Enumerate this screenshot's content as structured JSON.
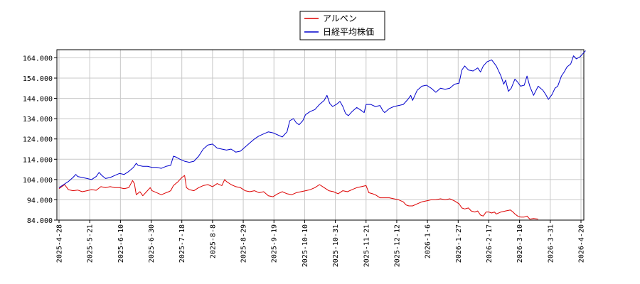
{
  "chart_data": {
    "type": "line",
    "title": "",
    "xlabel": "",
    "ylabel": "",
    "ylim": [
      84,
      168
    ],
    "y_ticks": [
      "84.000",
      "94.000",
      "104.000",
      "114.000",
      "124.000",
      "134.000",
      "144.000",
      "154.000",
      "164.000"
    ],
    "y_tick_values": [
      84,
      94,
      104,
      114,
      124,
      134,
      144,
      154,
      164
    ],
    "x_ticks": [
      "2025-4-28",
      "2025-5-21",
      "2025-6-10",
      "2025-6-30",
      "2025-7-18",
      "2025-8-8",
      "2025-8-29",
      "2025-9-19",
      "2025-10-10",
      "2025-10-31",
      "2025-11-21",
      "2025-12-12",
      "2026-1-6",
      "2026-1-27",
      "2026-2-17",
      "2026-3-10",
      "2026-3-31",
      "2026-4-20"
    ],
    "grid": true,
    "legend_position": "top-center",
    "series": [
      {
        "name": "アルペン",
        "color": "#dd0000",
        "points": [
          [
            0,
            99.5
          ],
          [
            0.6,
            101.5
          ],
          [
            1,
            99
          ],
          [
            1.5,
            98.5
          ],
          [
            2,
            98.8
          ],
          [
            2.5,
            98
          ],
          [
            3,
            98.5
          ],
          [
            3.5,
            99
          ],
          [
            4,
            98.7
          ],
          [
            4.5,
            100.5
          ],
          [
            5,
            100
          ],
          [
            5.5,
            100.5
          ],
          [
            6,
            100
          ],
          [
            6.5,
            100
          ],
          [
            7,
            99.5
          ],
          [
            7.5,
            100
          ],
          [
            7.9,
            103.5
          ],
          [
            8.1,
            102
          ],
          [
            8.3,
            96.5
          ],
          [
            8.7,
            98
          ],
          [
            9,
            96
          ],
          [
            9.5,
            98.5
          ],
          [
            9.8,
            100
          ],
          [
            10,
            98.5
          ],
          [
            10.5,
            97.5
          ],
          [
            11,
            96.5
          ],
          [
            11.5,
            97.5
          ],
          [
            11.8,
            98
          ],
          [
            12,
            98.5
          ],
          [
            12.3,
            101
          ],
          [
            12.8,
            103
          ],
          [
            13.2,
            105
          ],
          [
            13.5,
            106
          ],
          [
            13.7,
            100
          ],
          [
            14,
            99
          ],
          [
            14.5,
            98.5
          ],
          [
            15,
            100
          ],
          [
            15.5,
            101
          ],
          [
            16,
            101.5
          ],
          [
            16.5,
            100.5
          ],
          [
            17,
            102
          ],
          [
            17.5,
            101
          ],
          [
            17.8,
            104
          ],
          [
            18,
            103
          ],
          [
            18.5,
            101.5
          ],
          [
            19,
            100.5
          ],
          [
            19.5,
            100
          ],
          [
            20,
            98.5
          ],
          [
            20.5,
            98
          ],
          [
            21,
            98.5
          ],
          [
            21.5,
            97.5
          ],
          [
            22,
            98
          ],
          [
            22.5,
            96
          ],
          [
            23,
            95.5
          ],
          [
            23.5,
            97
          ],
          [
            24,
            98
          ],
          [
            24.5,
            97
          ],
          [
            25,
            96.5
          ],
          [
            25.5,
            97.5
          ],
          [
            26,
            98
          ],
          [
            26.5,
            98.5
          ],
          [
            27,
            99
          ],
          [
            27.5,
            100
          ],
          [
            28,
            101.5
          ],
          [
            28.5,
            100
          ],
          [
            29,
            98.5
          ],
          [
            29.5,
            98
          ],
          [
            30,
            97
          ],
          [
            30.5,
            98.5
          ],
          [
            31,
            98
          ],
          [
            31.5,
            99
          ],
          [
            32,
            100
          ],
          [
            32.5,
            100.5
          ],
          [
            33,
            101
          ],
          [
            33.3,
            97.5
          ],
          [
            33.7,
            97
          ],
          [
            34,
            96.5
          ],
          [
            34.5,
            95
          ],
          [
            35,
            95
          ],
          [
            35.5,
            95
          ],
          [
            36,
            94.5
          ],
          [
            36.5,
            94
          ],
          [
            37,
            93
          ],
          [
            37.3,
            91.5
          ],
          [
            37.6,
            91
          ],
          [
            38,
            91
          ],
          [
            38.5,
            92
          ],
          [
            39,
            93
          ],
          [
            39.5,
            93.5
          ],
          [
            40,
            94
          ],
          [
            40.5,
            94
          ],
          [
            41,
            94.5
          ],
          [
            41.5,
            94
          ],
          [
            42,
            94.5
          ],
          [
            42.5,
            93.5
          ],
          [
            43,
            92
          ],
          [
            43.3,
            90
          ],
          [
            43.6,
            89.5
          ],
          [
            44,
            90
          ],
          [
            44.3,
            88.5
          ],
          [
            44.7,
            88
          ],
          [
            45,
            88.5
          ],
          [
            45.3,
            86.5
          ],
          [
            45.6,
            86
          ],
          [
            45.9,
            88
          ],
          [
            46.2,
            88
          ],
          [
            46.5,
            87.5
          ],
          [
            46.8,
            88
          ],
          [
            47,
            87
          ],
          [
            47.5,
            88
          ],
          [
            48,
            88.5
          ],
          [
            48.5,
            89
          ],
          [
            48.8,
            88
          ],
          [
            49,
            87
          ],
          [
            49.3,
            86
          ],
          [
            49.6,
            85.5
          ],
          [
            50,
            85.5
          ],
          [
            50.3,
            86
          ],
          [
            50.6,
            84.5
          ],
          [
            51,
            84.8
          ],
          [
            51.5,
            84.5
          ]
        ]
      },
      {
        "name": "日経平均株価",
        "color": "#0000cc",
        "points": [
          [
            0,
            100
          ],
          [
            0.5,
            101.5
          ],
          [
            1,
            103
          ],
          [
            1.5,
            105
          ],
          [
            1.8,
            106.5
          ],
          [
            2,
            105.5
          ],
          [
            2.5,
            105
          ],
          [
            3,
            104.5
          ],
          [
            3.5,
            104
          ],
          [
            4,
            105.5
          ],
          [
            4.3,
            107.5
          ],
          [
            4.6,
            106
          ],
          [
            5,
            104.5
          ],
          [
            5.5,
            105
          ],
          [
            6,
            106
          ],
          [
            6.5,
            107
          ],
          [
            7,
            106.5
          ],
          [
            7.5,
            108
          ],
          [
            8,
            110
          ],
          [
            8.3,
            112
          ],
          [
            8.5,
            111
          ],
          [
            9,
            110.5
          ],
          [
            9.5,
            110.5
          ],
          [
            10,
            110
          ],
          [
            10.5,
            110
          ],
          [
            11,
            109.5
          ],
          [
            11.5,
            110.5
          ],
          [
            12,
            111
          ],
          [
            12.3,
            115.5
          ],
          [
            12.6,
            115
          ],
          [
            13,
            114
          ],
          [
            13.5,
            113
          ],
          [
            14,
            112.5
          ],
          [
            14.5,
            113
          ],
          [
            15,
            115.5
          ],
          [
            15.5,
            119
          ],
          [
            16,
            121
          ],
          [
            16.5,
            121.5
          ],
          [
            17,
            119.5
          ],
          [
            17.5,
            119
          ],
          [
            18,
            118.5
          ],
          [
            18.5,
            119
          ],
          [
            19,
            117.5
          ],
          [
            19.5,
            118
          ],
          [
            20,
            120
          ],
          [
            20.5,
            122
          ],
          [
            21,
            124
          ],
          [
            21.5,
            125.5
          ],
          [
            22,
            126.5
          ],
          [
            22.5,
            127.5
          ],
          [
            23,
            127
          ],
          [
            23.5,
            126
          ],
          [
            24,
            125
          ],
          [
            24.5,
            127.5
          ],
          [
            24.8,
            133
          ],
          [
            25.2,
            134
          ],
          [
            25.5,
            132
          ],
          [
            25.8,
            131
          ],
          [
            26.2,
            133
          ],
          [
            26.5,
            136
          ],
          [
            27,
            137.5
          ],
          [
            27.5,
            138.5
          ],
          [
            28,
            141
          ],
          [
            28.5,
            143
          ],
          [
            28.8,
            145.5
          ],
          [
            29.1,
            141.5
          ],
          [
            29.4,
            140
          ],
          [
            29.8,
            141
          ],
          [
            30.2,
            142.5
          ],
          [
            30.5,
            140
          ],
          [
            30.8,
            136.5
          ],
          [
            31.1,
            135.5
          ],
          [
            31.5,
            137.5
          ],
          [
            32,
            139.5
          ],
          [
            32.5,
            138
          ],
          [
            32.8,
            137
          ],
          [
            33,
            141
          ],
          [
            33.5,
            141
          ],
          [
            34,
            140
          ],
          [
            34.5,
            140.5
          ],
          [
            34.8,
            138
          ],
          [
            35,
            137
          ],
          [
            35.5,
            139
          ],
          [
            36,
            140
          ],
          [
            36.5,
            140.5
          ],
          [
            37,
            141
          ],
          [
            37.5,
            143.5
          ],
          [
            37.8,
            145.5
          ],
          [
            38,
            143
          ],
          [
            38.5,
            148
          ],
          [
            39,
            150
          ],
          [
            39.5,
            150.5
          ],
          [
            40,
            149
          ],
          [
            40.5,
            147
          ],
          [
            41,
            149
          ],
          [
            41.5,
            148.5
          ],
          [
            42,
            149
          ],
          [
            42.5,
            151
          ],
          [
            43,
            151.5
          ],
          [
            43.3,
            158
          ],
          [
            43.6,
            160
          ],
          [
            44,
            158
          ],
          [
            44.5,
            157.5
          ],
          [
            45,
            159
          ],
          [
            45.3,
            157
          ],
          [
            45.6,
            160
          ],
          [
            46,
            162
          ],
          [
            46.5,
            163
          ],
          [
            47,
            160
          ],
          [
            47.5,
            155
          ],
          [
            47.8,
            151
          ],
          [
            48,
            153
          ],
          [
            48.3,
            147.5
          ],
          [
            48.6,
            149
          ],
          [
            49,
            153.5
          ],
          [
            49.3,
            152
          ],
          [
            49.6,
            150
          ],
          [
            50,
            150.5
          ],
          [
            50.3,
            155
          ],
          [
            50.6,
            150
          ],
          [
            51,
            145.5
          ],
          [
            51.5,
            150
          ],
          [
            52,
            148
          ],
          [
            52.3,
            146
          ],
          [
            52.6,
            143.5
          ],
          [
            53,
            146
          ],
          [
            53.3,
            149
          ],
          [
            53.6,
            150
          ],
          [
            54,
            155
          ],
          [
            54.3,
            157
          ],
          [
            54.6,
            159.5
          ],
          [
            55,
            161
          ],
          [
            55.3,
            165
          ],
          [
            55.6,
            163.5
          ],
          [
            56,
            164.5
          ],
          [
            56.3,
            166
          ],
          [
            56.6,
            167.5
          ]
        ]
      }
    ]
  }
}
